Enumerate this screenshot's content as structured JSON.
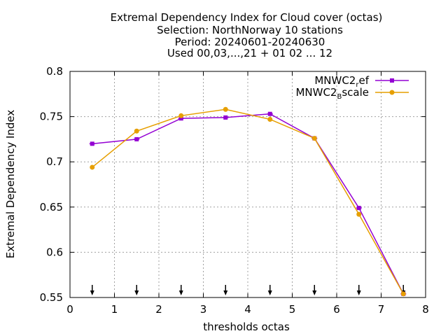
{
  "chart_data": {
    "type": "line",
    "title_lines": [
      "Extremal Dependency Index  for Cloud cover (octas)",
      "Selection: NorthNorway     10 stations",
      "Period: 20240601-20240630",
      "Used 00,03,...,21 + 01 02 ... 12"
    ],
    "xlabel": "thresholds octas",
    "ylabel": "Extremal Dependency Index",
    "xlim": [
      0,
      8
    ],
    "ylim": [
      0.55,
      0.8
    ],
    "xticks": [
      0,
      1,
      2,
      3,
      4,
      5,
      6,
      7,
      8
    ],
    "xtick_labels": [
      "0",
      "1",
      "2",
      "3",
      "4",
      "5",
      "6",
      "7",
      "8"
    ],
    "yticks": [
      0.55,
      0.6,
      0.65,
      0.7,
      0.75,
      0.8
    ],
    "ytick_labels": [
      "0.55",
      "0.6",
      "0.65",
      "0.7",
      "0.75",
      "0.8"
    ],
    "grid": true,
    "legend_position": "top-right",
    "x": [
      0.5,
      1.5,
      2.5,
      3.5,
      4.5,
      5.5,
      6.5,
      7.5
    ],
    "series": [
      {
        "name_main": "MNWC2",
        "name_sub": "r",
        "name_rest": "ef",
        "color": "#9400d3",
        "values": [
          0.72,
          0.725,
          0.748,
          0.749,
          0.753,
          0.726,
          0.649,
          0.554
        ]
      },
      {
        "name_main": "MNWC2",
        "name_sub": "B",
        "name_rest": "scale",
        "color": "#e69f00",
        "values": [
          0.694,
          0.734,
          0.751,
          0.758,
          0.747,
          0.726,
          0.642,
          0.554
        ]
      }
    ],
    "arrow_markers_x": [
      0.5,
      1.5,
      2.5,
      3.5,
      4.5,
      5.5,
      6.5,
      7.5
    ]
  }
}
